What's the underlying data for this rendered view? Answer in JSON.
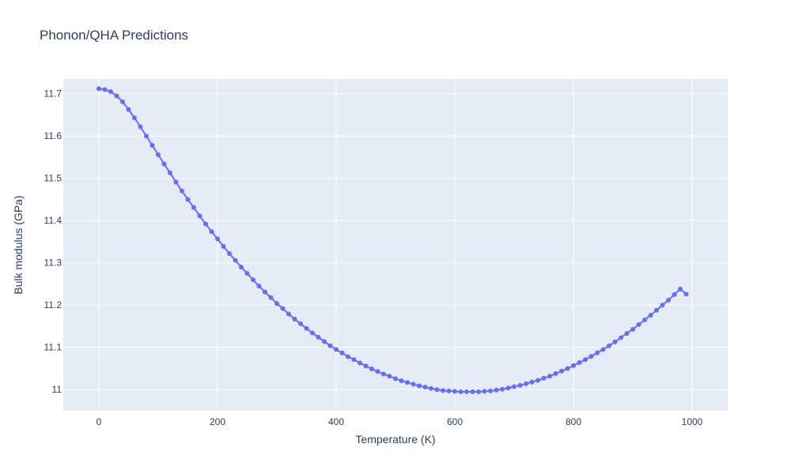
{
  "chart_data": {
    "type": "line",
    "title": "Phonon/QHA Predictions",
    "xlabel": "Temperature (K)",
    "ylabel": "Bulk modulus (GPa)",
    "xlim": [
      -60,
      1060
    ],
    "ylim": [
      10.95,
      11.735
    ],
    "xticks": [
      0,
      200,
      400,
      600,
      800,
      1000
    ],
    "xtick_labels": [
      "0",
      "200",
      "400",
      "600",
      "800",
      "1000"
    ],
    "yticks": [
      11.0,
      11.1,
      11.2,
      11.3,
      11.4,
      11.5,
      11.6,
      11.7
    ],
    "ytick_labels": [
      "11",
      "11.1",
      "11.2",
      "11.3",
      "11.4",
      "11.5",
      "11.6",
      "11.7"
    ],
    "grid": true,
    "legend": "none",
    "colors": {
      "plot_bg": "#e5ecf6",
      "series": "#636efa",
      "text": "#2a3f5f"
    },
    "series": [
      {
        "x": [
          0,
          10,
          20,
          30,
          40,
          50,
          60,
          70,
          80,
          90,
          100,
          110,
          120,
          130,
          140,
          150,
          160,
          170,
          180,
          190,
          200,
          210,
          220,
          230,
          240,
          250,
          260,
          270,
          280,
          290,
          300,
          310,
          320,
          330,
          340,
          350,
          360,
          370,
          380,
          390,
          400,
          410,
          420,
          430,
          440,
          450,
          460,
          470,
          480,
          490,
          500,
          510,
          520,
          530,
          540,
          550,
          560,
          570,
          580,
          590,
          600,
          610,
          620,
          630,
          640,
          650,
          660,
          670,
          680,
          690,
          700,
          710,
          720,
          730,
          740,
          750,
          760,
          770,
          780,
          790,
          800,
          810,
          820,
          830,
          840,
          850,
          860,
          870,
          880,
          890,
          900,
          910,
          920,
          930,
          940,
          950,
          960,
          970,
          980,
          990
        ],
        "y": [
          11.712,
          11.71,
          11.705,
          11.695,
          11.681,
          11.663,
          11.643,
          11.622,
          11.6,
          11.578,
          11.556,
          11.534,
          11.513,
          11.491,
          11.47,
          11.45,
          11.431,
          11.411,
          11.392,
          11.374,
          11.357,
          11.339,
          11.322,
          11.306,
          11.29,
          11.275,
          11.26,
          11.245,
          11.231,
          11.218,
          11.204,
          11.192,
          11.179,
          11.167,
          11.156,
          11.145,
          11.134,
          11.124,
          11.114,
          11.104,
          11.095,
          11.087,
          11.078,
          11.071,
          11.063,
          11.056,
          11.049,
          11.043,
          11.037,
          11.032,
          11.026,
          11.021,
          11.017,
          11.013,
          11.009,
          11.006,
          11.003,
          11.0,
          10.998,
          10.997,
          10.996,
          10.995,
          10.995,
          10.995,
          10.995,
          10.996,
          10.997,
          10.999,
          11.001,
          11.004,
          11.007,
          11.01,
          11.014,
          11.018,
          11.022,
          11.027,
          11.032,
          11.038,
          11.044,
          11.05,
          11.057,
          11.064,
          11.071,
          11.079,
          11.087,
          11.095,
          11.104,
          11.113,
          11.123,
          11.133,
          11.143,
          11.154,
          11.165,
          11.176,
          11.188,
          11.2,
          11.212,
          11.225,
          11.238,
          11.226
        ]
      }
    ]
  }
}
